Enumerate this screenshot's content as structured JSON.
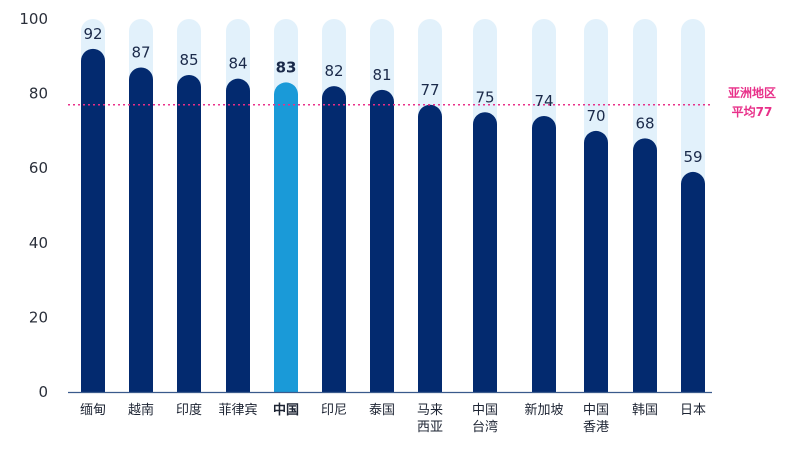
{
  "chart_data": {
    "type": "bar",
    "categories": [
      [
        "缅甸"
      ],
      [
        "越南"
      ],
      [
        "印度"
      ],
      [
        "菲律宾"
      ],
      [
        "中国"
      ],
      [
        "印尼"
      ],
      [
        "泰国"
      ],
      [
        "马来",
        "西亚"
      ],
      [
        "中国",
        "台湾"
      ],
      [
        "新加坡"
      ],
      [
        "中国",
        "香港"
      ],
      [
        "韩国"
      ],
      [
        "日本"
      ]
    ],
    "values": [
      92,
      87,
      85,
      84,
      83,
      82,
      81,
      77,
      75,
      74,
      70,
      68,
      59
    ],
    "highlight_index": 4,
    "ylim": [
      0,
      100
    ],
    "yticks": [
      0,
      20,
      40,
      60,
      80,
      100
    ],
    "reference_line": {
      "value": 77,
      "label_lines": [
        "亚洲地区",
        "平均77"
      ]
    },
    "colors": {
      "bar": "#032a6f",
      "highlight": "#1a9ad8",
      "background_bar": "#e2f1fb",
      "reference": "#e8318a",
      "axis": "#3a5a8c"
    }
  }
}
